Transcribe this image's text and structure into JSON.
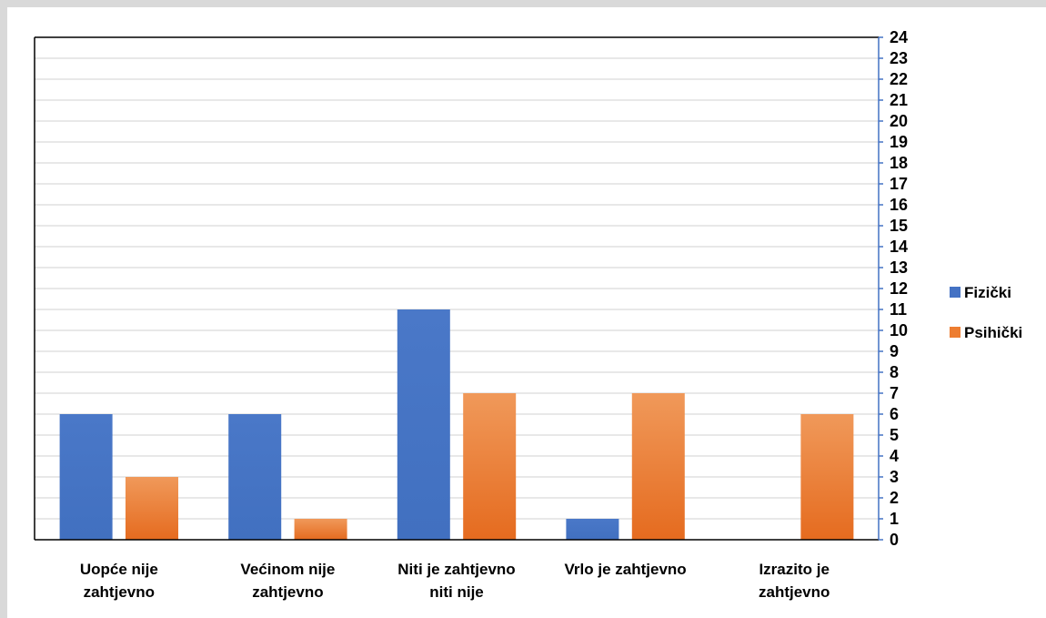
{
  "chart_data": {
    "type": "bar",
    "categories": [
      [
        "Uopće nije",
        "zahtjevno"
      ],
      [
        "Većinom nije",
        "zahtjevno"
      ],
      [
        "Niti je zahtjevno",
        "niti nije"
      ],
      [
        "Vrlo je zahtjevno"
      ],
      [
        "Izrazito je",
        "zahtjevno"
      ]
    ],
    "series": [
      {
        "name": "Fizički",
        "color": "#4472c4",
        "values": [
          6,
          6,
          11,
          1,
          0
        ]
      },
      {
        "name": "Psihički",
        "color": "#ed7d31",
        "values": [
          3,
          1,
          7,
          7,
          6
        ]
      }
    ],
    "ylim": [
      0,
      24
    ],
    "y_ticks": [
      "0",
      "1",
      "2",
      "3",
      "4",
      "5",
      "6",
      "7",
      "8",
      "9",
      "10",
      "11",
      "12",
      "13",
      "14",
      "15",
      "16",
      "17",
      "18",
      "19",
      "20",
      "21",
      "22",
      "23",
      "24"
    ],
    "y_axis_side": "right",
    "grid": true,
    "legend_position": "right"
  }
}
